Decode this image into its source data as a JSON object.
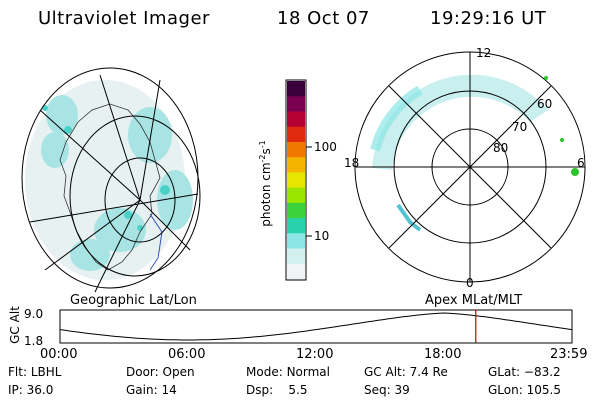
{
  "header": {
    "instrument": "Ultraviolet Imager",
    "date": "18 Oct 07",
    "time": "19:29:16 UT"
  },
  "colorbar": {
    "unit_label": "photon cm",
    "unit_exp1": "-2",
    "unit_s": "s",
    "unit_exp2": "-1",
    "ticks": [
      "100",
      "10"
    ],
    "colors": [
      "#3a003c",
      "#7a0050",
      "#b40032",
      "#e02a10",
      "#f07800",
      "#f5b400",
      "#e6e600",
      "#9be600",
      "#3cd23c",
      "#28d2aa",
      "#8ce6e6",
      "#d2f0f0",
      "#f0f4f4"
    ]
  },
  "geo_panel": {
    "caption": "Geographic Lat/Lon"
  },
  "polar_panel": {
    "caption": "Apex MLat/MLT",
    "mlt_labels": {
      "top": "12",
      "left": "18",
      "right": "6",
      "bottom": "0"
    },
    "lat_labels": [
      "60",
      "70",
      "80"
    ]
  },
  "timeline": {
    "y_title": "GC Alt",
    "y_ticks": [
      "9.0",
      "1.8"
    ],
    "x_ticks": [
      "00:00",
      "06:00",
      "12:00",
      "18:00",
      "23:59"
    ],
    "marker_color": "#c00000",
    "marker_hour": 19.49
  },
  "info": {
    "filter_label": "Flt:",
    "filter": "LBHL",
    "ip_label": "IP:",
    "ip": "36.0",
    "door_label": "Door:",
    "door": "Open",
    "gain_label": "Gain:",
    "gain": "14",
    "mode_label": "Mode:",
    "mode": "Normal",
    "dsp_label": "Dsp:",
    "dsp": "5.5",
    "gcalt_label": "GC Alt:",
    "gcalt": "7.4 Re",
    "seq_label": "Seq:",
    "seq": "39",
    "glat_label": "GLat:",
    "glat": "−83.2",
    "glon_label": "GLon:",
    "glon": "105.5"
  }
}
